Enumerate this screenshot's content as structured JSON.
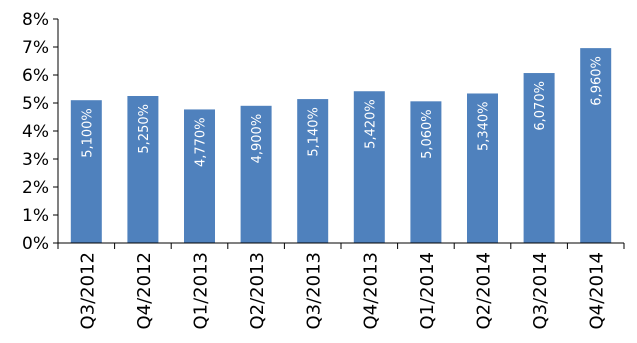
{
  "chart_data": {
    "type": "bar",
    "categories": [
      "Q3/2012",
      "Q4/2012",
      "Q1/2013",
      "Q2/2013",
      "Q3/2013",
      "Q4/2013",
      "Q1/2014",
      "Q2/2014",
      "Q3/2014",
      "Q4/2014"
    ],
    "values": [
      5.1,
      5.25,
      4.77,
      4.9,
      5.14,
      5.42,
      5.06,
      5.34,
      6.07,
      6.96
    ],
    "data_labels": [
      "5,100%",
      "5,250%",
      "4,770%",
      "4,900%",
      "5,140%",
      "5,420%",
      "5,060%",
      "5,340%",
      "6,070%",
      "6,960%"
    ],
    "y_ticks": [
      "0%",
      "1%",
      "2%",
      "3%",
      "4%",
      "5%",
      "6%",
      "7%",
      "8%"
    ],
    "ylim": [
      0,
      8
    ],
    "grid": false,
    "legend": "none",
    "title": "",
    "xlabel": "",
    "ylabel": "",
    "colors": {
      "bar": "#4f81bd",
      "axis": "#000000",
      "label": "#ffffff"
    }
  }
}
